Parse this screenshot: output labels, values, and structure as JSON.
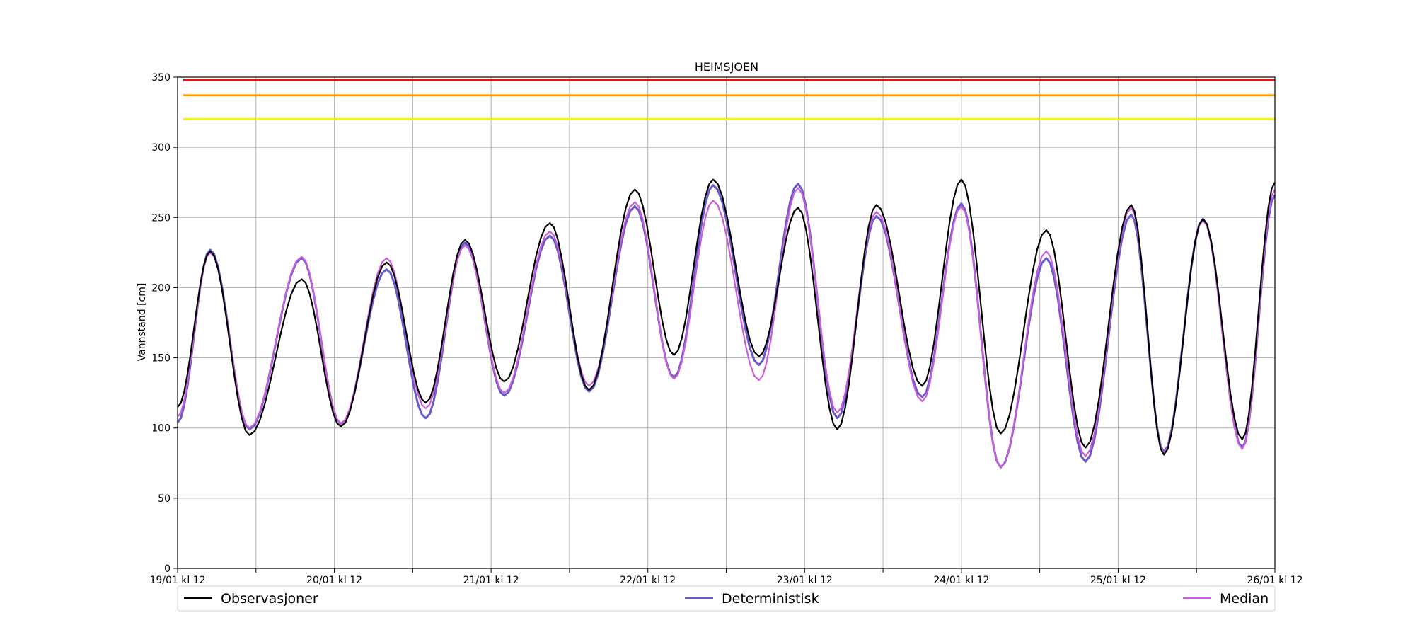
{
  "chart_data": {
    "type": "line",
    "title": "HEIMSJOEN",
    "xlabel": "",
    "ylabel": "Vannstand [cm]",
    "ylim": [
      0,
      350
    ],
    "y_ticks": [
      0,
      50,
      100,
      150,
      200,
      250,
      300,
      350
    ],
    "x_tick_labels": [
      "19/01 kl 12",
      "20/01 kl 12",
      "21/01 kl 12",
      "22/01 kl 12",
      "23/01 kl 12",
      "24/01 kl 12",
      "25/01 kl 12",
      "26/01 kl 12"
    ],
    "x_unit": "hours since 19/01 kl 12",
    "xlim": [
      0,
      168
    ],
    "grid": true,
    "legend_position": "bottom",
    "thresholds": [
      {
        "value": 348,
        "color": "#e8141b"
      },
      {
        "value": 337,
        "color": "#ffa500"
      },
      {
        "value": 320,
        "color": "#f5f50a"
      }
    ],
    "series": [
      {
        "name": "Observasjoner",
        "color": "#000000",
        "peaks": [
          [
            0,
            115
          ],
          [
            5,
            226
          ],
          [
            11,
            95
          ],
          [
            19,
            206
          ],
          [
            25,
            101
          ],
          [
            32,
            218
          ],
          [
            38,
            118
          ],
          [
            44,
            234
          ],
          [
            50,
            133
          ],
          [
            57,
            246
          ],
          [
            63,
            127
          ],
          [
            70,
            270
          ],
          [
            76,
            152
          ],
          [
            82,
            277
          ],
          [
            89,
            151
          ],
          [
            95,
            257
          ],
          [
            101,
            99
          ],
          [
            107,
            259
          ],
          [
            114,
            130
          ],
          [
            120,
            277
          ],
          [
            126,
            96
          ],
          [
            133,
            241
          ],
          [
            139,
            86
          ],
          [
            146,
            259
          ],
          [
            151,
            81
          ],
          [
            157,
            249
          ],
          [
            163,
            92
          ],
          [
            168,
            275
          ]
        ]
      },
      {
        "name": "Deterministisk",
        "color": "#6a5acd",
        "peaks": [
          [
            0,
            104
          ],
          [
            5,
            227
          ],
          [
            11,
            99
          ],
          [
            19,
            221
          ],
          [
            25,
            103
          ],
          [
            32,
            213
          ],
          [
            38,
            107
          ],
          [
            44,
            232
          ],
          [
            50,
            123
          ],
          [
            57,
            237
          ],
          [
            63,
            126
          ],
          [
            70,
            258
          ],
          [
            76,
            136
          ],
          [
            82,
            273
          ],
          [
            89,
            145
          ],
          [
            95,
            274
          ],
          [
            101,
            107
          ],
          [
            107,
            251
          ],
          [
            114,
            122
          ],
          [
            120,
            260
          ],
          [
            126,
            72
          ],
          [
            133,
            221
          ],
          [
            139,
            76
          ],
          [
            146,
            252
          ],
          [
            151,
            83
          ],
          [
            157,
            249
          ],
          [
            163,
            86
          ],
          [
            168,
            266
          ]
        ]
      },
      {
        "name": "Median",
        "color": "#cc5ed8",
        "peaks": [
          [
            0,
            108
          ],
          [
            5,
            225
          ],
          [
            11,
            100
          ],
          [
            19,
            222
          ],
          [
            25,
            103
          ],
          [
            32,
            221
          ],
          [
            38,
            114
          ],
          [
            44,
            230
          ],
          [
            50,
            125
          ],
          [
            57,
            240
          ],
          [
            63,
            130
          ],
          [
            70,
            261
          ],
          [
            76,
            135
          ],
          [
            82,
            262
          ],
          [
            89,
            134
          ],
          [
            95,
            271
          ],
          [
            101,
            111
          ],
          [
            107,
            254
          ],
          [
            114,
            119
          ],
          [
            120,
            258
          ],
          [
            126,
            72
          ],
          [
            133,
            226
          ],
          [
            139,
            80
          ],
          [
            146,
            257
          ],
          [
            151,
            82
          ],
          [
            157,
            248
          ],
          [
            163,
            85
          ],
          [
            168,
            270
          ]
        ]
      }
    ]
  }
}
